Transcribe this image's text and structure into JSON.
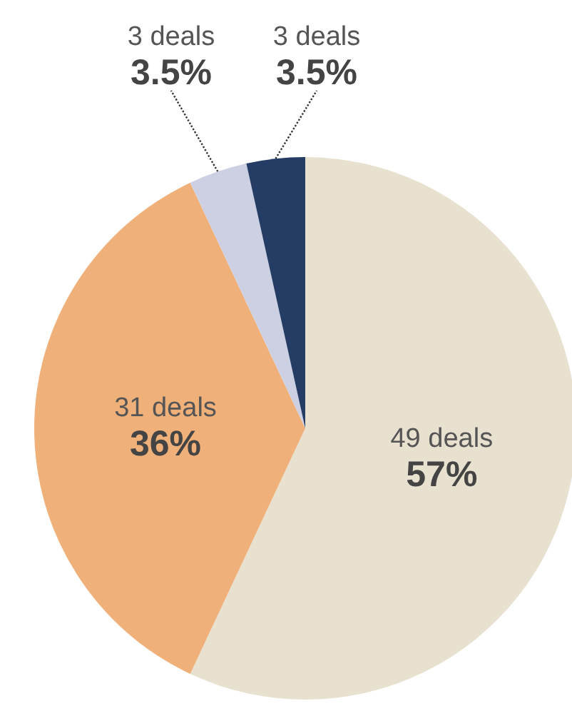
{
  "chart_data": {
    "type": "pie",
    "categories": [
      null,
      null,
      null,
      null
    ],
    "values": [
      49,
      31,
      3,
      3
    ],
    "value_labels": [
      "49 deals\n57%",
      "31 deals\n36%",
      "3 deals\n3.5%",
      "3 deals\n3.5%"
    ],
    "colors": [
      "#e8e1cf",
      "#f0b07a",
      "#cdd0e3",
      "#253c64"
    ]
  }
}
